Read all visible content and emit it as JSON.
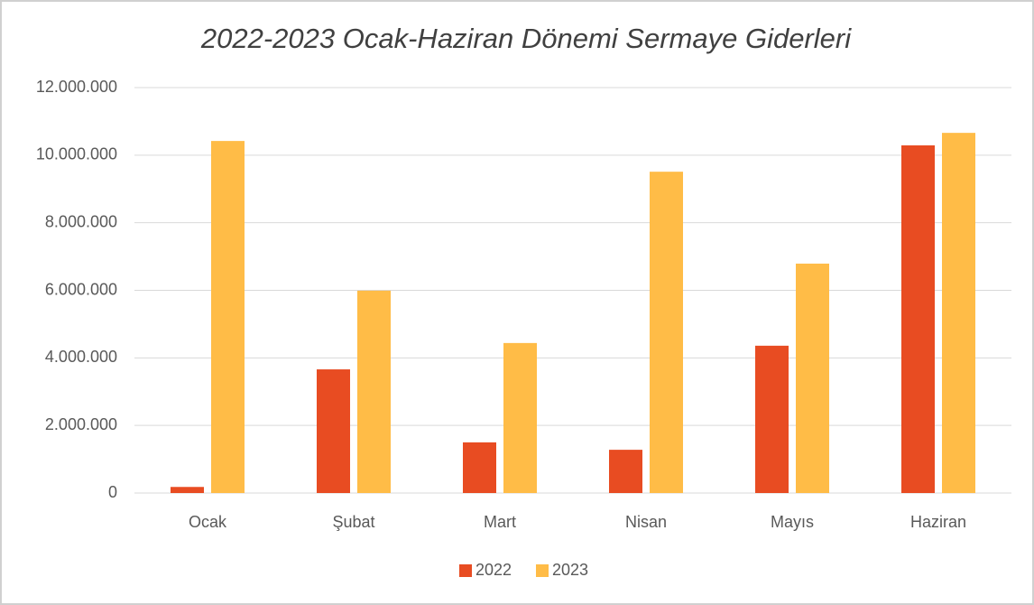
{
  "chart_data": {
    "type": "bar",
    "title": "2022-2023 Ocak-Haziran Dönemi Sermaye Giderleri",
    "categories": [
      "Ocak",
      "Şubat",
      "Mart",
      "Nisan",
      "Mayıs",
      "Haziran"
    ],
    "series": [
      {
        "name": "2022",
        "color": "#e84c22",
        "values": [
          180000,
          3660000,
          1500000,
          1280000,
          4360000,
          10290000
        ]
      },
      {
        "name": "2023",
        "color": "#ffbc47",
        "values": [
          10420000,
          5990000,
          4440000,
          9510000,
          6790000,
          10660000
        ]
      }
    ],
    "ylim": [
      0,
      12000000
    ],
    "yticks": [
      0,
      {
        "value": 2000000,
        "label": "2.000.000"
      },
      {
        "value": 4000000,
        "label": "4.000.000"
      },
      {
        "value": 6000000,
        "label": "6.000.000"
      },
      {
        "value": 8000000,
        "label": "8.000.000"
      },
      {
        "value": 10000000,
        "label": "10.000.000"
      },
      {
        "value": 12000000,
        "label": "12.000.000"
      }
    ],
    "grid": true,
    "legend": "bottom"
  }
}
